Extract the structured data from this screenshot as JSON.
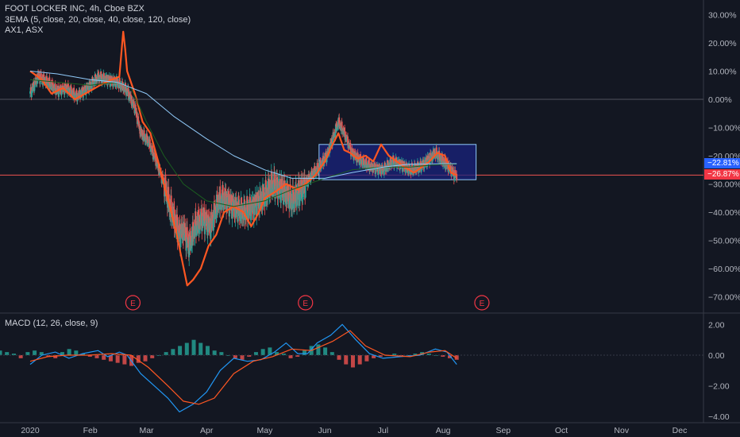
{
  "header": {
    "title": "FOOT LOCKER INC, 4h, Cboe BZX",
    "indicator1": "3EMA (5, close, 20, close, 40, close, 120, close)",
    "indicator2": "AX1, ASX"
  },
  "macd_panel": {
    "label": "MACD (12, 26, close, 9)"
  },
  "price_tags": [
    {
      "text": "−22.81%",
      "color": "#2962ff"
    },
    {
      "text": "−26.87%",
      "color": "#f23645"
    }
  ],
  "earnings_markers": [
    {
      "label": "E",
      "x_month": "Feb"
    },
    {
      "label": "E",
      "x_month": "May"
    },
    {
      "label": "E",
      "x_month": "Aug"
    }
  ],
  "colors": {
    "background": "#131722",
    "grid": "#2a2e39",
    "candle_up": "#26a69a",
    "candle_down": "#ef5350",
    "ema5": "#ff5722",
    "ema20": "#b71c1c",
    "ema40": "#1b5e20",
    "ema120": "#90caf9",
    "macd_line": "#2196f3",
    "signal_line": "#ff5722",
    "box_fill": "#1a237e",
    "box_border": "#90caf9"
  },
  "chart_data": [
    {
      "type": "line",
      "title": "FOOT LOCKER INC, 4h, Cboe BZX",
      "y_axis": {
        "unit": "%",
        "range": [
          -75,
          30
        ],
        "ticks": [
          "30.00%",
          "20.00%",
          "10.00%",
          "0.00%",
          "−10.00%",
          "−20.00%",
          "−30.00%",
          "−40.00%",
          "−50.00%",
          "−60.00%",
          "−70.00%"
        ],
        "tick_values": [
          30,
          20,
          10,
          0,
          -10,
          -20,
          -30,
          -40,
          -50,
          -60,
          -70
        ]
      },
      "x_axis": {
        "ticks": [
          "2020",
          "Feb",
          "Mar",
          "Apr",
          "May",
          "Jun",
          "Jul",
          "Aug",
          "Sep",
          "Oct",
          "Nov",
          "Dec"
        ],
        "tick_dates": [
          "2020-01-01",
          "2020-02-01",
          "2020-03-01",
          "2020-04-01",
          "2020-05-01",
          "2020-06-01",
          "2020-07-01",
          "2020-08-01",
          "2020-09-01",
          "2020-10-01",
          "2020-11-01",
          "2020-12-01"
        ]
      },
      "series": [
        {
          "key": "price",
          "points": [
            [
              "2020-01-01",
              2
            ],
            [
              "2020-01-05",
              8
            ],
            [
              "2020-01-10",
              6
            ],
            [
              "2020-01-15",
              3
            ],
            [
              "2020-01-20",
              4
            ],
            [
              "2020-01-25",
              1
            ],
            [
              "2020-02-01",
              5
            ],
            [
              "2020-02-05",
              8
            ],
            [
              "2020-02-10",
              7
            ],
            [
              "2020-02-15",
              6
            ],
            [
              "2020-02-20",
              3
            ],
            [
              "2020-02-24",
              -3
            ],
            [
              "2020-02-27",
              -12
            ],
            [
              "2020-03-02",
              -15
            ],
            [
              "2020-03-06",
              -22
            ],
            [
              "2020-03-10",
              -30
            ],
            [
              "2020-03-13",
              -38
            ],
            [
              "2020-03-16",
              -44
            ],
            [
              "2020-03-18",
              -48
            ],
            [
              "2020-03-20",
              -46
            ],
            [
              "2020-03-23",
              -52
            ],
            [
              "2020-03-26",
              -45
            ],
            [
              "2020-03-30",
              -42
            ],
            [
              "2020-04-03",
              -45
            ],
            [
              "2020-04-07",
              -36
            ],
            [
              "2020-04-10",
              -35
            ],
            [
              "2020-04-15",
              -38
            ],
            [
              "2020-04-20",
              -40
            ],
            [
              "2020-04-25",
              -38
            ],
            [
              "2020-05-01",
              -34
            ],
            [
              "2020-05-05",
              -30
            ],
            [
              "2020-05-10",
              -32
            ],
            [
              "2020-05-15",
              -36
            ],
            [
              "2020-05-20",
              -32
            ],
            [
              "2020-05-25",
              -27
            ],
            [
              "2020-05-29",
              -24
            ],
            [
              "2020-06-02",
              -20
            ],
            [
              "2020-06-05",
              -14
            ],
            [
              "2020-06-08",
              -8
            ],
            [
              "2020-06-11",
              -12
            ],
            [
              "2020-06-15",
              -19
            ],
            [
              "2020-06-20",
              -22
            ],
            [
              "2020-06-25",
              -24
            ],
            [
              "2020-07-01",
              -25
            ],
            [
              "2020-07-06",
              -22
            ],
            [
              "2020-07-10",
              -23
            ],
            [
              "2020-07-15",
              -25
            ],
            [
              "2020-07-20",
              -24
            ],
            [
              "2020-07-25",
              -21
            ],
            [
              "2020-07-28",
              -19
            ],
            [
              "2020-08-01",
              -22
            ],
            [
              "2020-08-04",
              -24
            ],
            [
              "2020-08-07",
              -27
            ],
            [
              "2020-08-08",
              -26.87
            ]
          ]
        },
        {
          "key": "ema5",
          "name": "EMA 5",
          "points": [
            [
              "2020-01-01",
              10
            ],
            [
              "2020-01-07",
              7
            ],
            [
              "2020-01-12",
              2
            ],
            [
              "2020-01-18",
              4
            ],
            [
              "2020-01-24",
              0
            ],
            [
              "2020-02-01",
              3
            ],
            [
              "2020-02-06",
              5
            ],
            [
              "2020-02-12",
              7
            ],
            [
              "2020-02-16",
              8
            ],
            [
              "2020-02-18",
              24
            ],
            [
              "2020-02-19",
              18
            ],
            [
              "2020-02-20",
              10
            ],
            [
              "2020-02-24",
              2
            ],
            [
              "2020-02-28",
              -8
            ],
            [
              "2020-03-03",
              -12
            ],
            [
              "2020-03-07",
              -22
            ],
            [
              "2020-03-10",
              -30
            ],
            [
              "2020-03-13",
              -38
            ],
            [
              "2020-03-16",
              -46
            ],
            [
              "2020-03-19",
              -56
            ],
            [
              "2020-03-22",
              -66
            ],
            [
              "2020-03-25",
              -64
            ],
            [
              "2020-03-29",
              -60
            ],
            [
              "2020-04-02",
              -52
            ],
            [
              "2020-04-06",
              -48
            ],
            [
              "2020-04-10",
              -40
            ],
            [
              "2020-04-15",
              -38
            ],
            [
              "2020-04-20",
              -40
            ],
            [
              "2020-04-24",
              -45
            ],
            [
              "2020-04-28",
              -40
            ],
            [
              "2020-05-01",
              -35
            ],
            [
              "2020-05-06",
              -33
            ],
            [
              "2020-05-12",
              -30
            ],
            [
              "2020-05-18",
              -32
            ],
            [
              "2020-05-22",
              -30
            ],
            [
              "2020-05-27",
              -27
            ],
            [
              "2020-06-01",
              -22
            ],
            [
              "2020-06-05",
              -16
            ],
            [
              "2020-06-08",
              -12
            ],
            [
              "2020-06-11",
              -18
            ],
            [
              "2020-06-14",
              -19
            ],
            [
              "2020-06-18",
              -21
            ],
            [
              "2020-06-22",
              -20
            ],
            [
              "2020-06-26",
              -22
            ],
            [
              "2020-06-30",
              -16
            ],
            [
              "2020-07-04",
              -20
            ],
            [
              "2020-07-08",
              -22
            ],
            [
              "2020-07-12",
              -24
            ],
            [
              "2020-07-17",
              -26
            ],
            [
              "2020-07-21",
              -24
            ],
            [
              "2020-07-25",
              -22
            ],
            [
              "2020-07-29",
              -19
            ],
            [
              "2020-08-02",
              -20
            ],
            [
              "2020-08-05",
              -26
            ],
            [
              "2020-08-08",
              -27
            ]
          ]
        },
        {
          "key": "ema40",
          "name": "EMA 40",
          "points": [
            [
              "2020-01-01",
              7
            ],
            [
              "2020-02-01",
              5
            ],
            [
              "2020-02-15",
              6
            ],
            [
              "2020-02-22",
              4
            ],
            [
              "2020-03-01",
              -8
            ],
            [
              "2020-03-10",
              -20
            ],
            [
              "2020-03-20",
              -30
            ],
            [
              "2020-04-01",
              -36
            ],
            [
              "2020-04-15",
              -38
            ],
            [
              "2020-05-01",
              -36
            ],
            [
              "2020-05-15",
              -32
            ],
            [
              "2020-06-01",
              -28
            ],
            [
              "2020-06-15",
              -25
            ],
            [
              "2020-07-01",
              -24
            ],
            [
              "2020-07-15",
              -24
            ],
            [
              "2020-08-01",
              -23
            ],
            [
              "2020-08-08",
              -23
            ]
          ]
        },
        {
          "key": "ema120",
          "name": "EMA 120",
          "points": [
            [
              "2020-01-01",
              10
            ],
            [
              "2020-01-15",
              9
            ],
            [
              "2020-02-01",
              7
            ],
            [
              "2020-02-15",
              6
            ],
            [
              "2020-03-01",
              2
            ],
            [
              "2020-03-15",
              -6
            ],
            [
              "2020-04-01",
              -14
            ],
            [
              "2020-04-15",
              -20
            ],
            [
              "2020-05-01",
              -25
            ],
            [
              "2020-05-15",
              -28
            ],
            [
              "2020-06-01",
              -28
            ],
            [
              "2020-06-15",
              -26
            ],
            [
              "2020-07-01",
              -24
            ],
            [
              "2020-07-15",
              -23
            ],
            [
              "2020-08-01",
              -22.81
            ],
            [
              "2020-08-08",
              -22.81
            ]
          ]
        }
      ],
      "box": {
        "x0": "2020-05-29",
        "x1": "2020-08-18",
        "y0": -16,
        "y1": -28.5
      },
      "horizontal_lines": [
        0,
        -26.87
      ],
      "last_values": {
        "ema120": -22.81,
        "price": -26.87
      }
    },
    {
      "type": "line",
      "title": "MACD (12, 26, close, 9)",
      "y_axis": {
        "ticks": [
          "2.00",
          "0.00",
          "−2.00",
          "−4.00"
        ],
        "tick_values": [
          2,
          0,
          -2,
          -4
        ],
        "range": [
          -4.1,
          2.1
        ]
      },
      "series": [
        {
          "key": "macd",
          "points": [
            [
              "2020-01-01",
              -0.6
            ],
            [
              "2020-01-07",
              0.0
            ],
            [
              "2020-01-14",
              0.2
            ],
            [
              "2020-01-21",
              -0.2
            ],
            [
              "2020-01-28",
              0.1
            ],
            [
              "2020-02-05",
              0.3
            ],
            [
              "2020-02-10",
              -0.1
            ],
            [
              "2020-02-16",
              0.2
            ],
            [
              "2020-02-20",
              0.0
            ],
            [
              "2020-02-27",
              -1.2
            ],
            [
              "2020-03-05",
              -2.0
            ],
            [
              "2020-03-12",
              -2.8
            ],
            [
              "2020-03-18",
              -3.7
            ],
            [
              "2020-03-25",
              -3.2
            ],
            [
              "2020-04-01",
              -2.4
            ],
            [
              "2020-04-08",
              -1.0
            ],
            [
              "2020-04-15",
              -0.2
            ],
            [
              "2020-04-22",
              -0.4
            ],
            [
              "2020-04-29",
              -0.3
            ],
            [
              "2020-05-06",
              0.2
            ],
            [
              "2020-05-12",
              0.8
            ],
            [
              "2020-05-18",
              0.1
            ],
            [
              "2020-05-23",
              0.1
            ],
            [
              "2020-05-28",
              0.8
            ],
            [
              "2020-06-04",
              1.3
            ],
            [
              "2020-06-10",
              2.0
            ],
            [
              "2020-06-17",
              1.0
            ],
            [
              "2020-06-24",
              0.1
            ],
            [
              "2020-07-01",
              -0.2
            ],
            [
              "2020-07-10",
              -0.1
            ],
            [
              "2020-07-20",
              0.0
            ],
            [
              "2020-07-28",
              0.4
            ],
            [
              "2020-08-03",
              0.2
            ],
            [
              "2020-08-08",
              -0.6
            ]
          ]
        },
        {
          "key": "signal",
          "points": [
            [
              "2020-01-01",
              -0.4
            ],
            [
              "2020-01-10",
              -0.1
            ],
            [
              "2020-01-20",
              0.0
            ],
            [
              "2020-01-31",
              0.0
            ],
            [
              "2020-02-12",
              0.1
            ],
            [
              "2020-02-22",
              0.0
            ],
            [
              "2020-03-02",
              -0.8
            ],
            [
              "2020-03-12",
              -2.0
            ],
            [
              "2020-03-20",
              -3.0
            ],
            [
              "2020-03-28",
              -3.2
            ],
            [
              "2020-04-05",
              -2.8
            ],
            [
              "2020-04-15",
              -1.2
            ],
            [
              "2020-04-25",
              -0.4
            ],
            [
              "2020-05-05",
              -0.1
            ],
            [
              "2020-05-15",
              0.4
            ],
            [
              "2020-05-25",
              0.3
            ],
            [
              "2020-06-05",
              0.9
            ],
            [
              "2020-06-14",
              1.6
            ],
            [
              "2020-06-22",
              0.6
            ],
            [
              "2020-07-02",
              0.0
            ],
            [
              "2020-07-15",
              -0.1
            ],
            [
              "2020-07-25",
              0.2
            ],
            [
              "2020-08-02",
              0.3
            ],
            [
              "2020-08-08",
              -0.2
            ]
          ]
        }
      ],
      "histogram": [
        0.3,
        0.2,
        0.1,
        -0.2,
        0.2,
        0.3,
        0.2,
        -0.1,
        -0.2,
        0.2,
        0.4,
        0.3,
        0.1,
        -0.1,
        -0.2,
        -0.3,
        -0.4,
        -0.5,
        -0.6,
        -0.7,
        -0.5,
        -0.4,
        -0.2,
        0.0,
        0.2,
        0.4,
        0.6,
        0.8,
        1.0,
        0.8,
        0.6,
        0.3,
        0.2,
        0.0,
        -0.2,
        -0.3,
        -0.1,
        0.2,
        0.4,
        0.5,
        0.2,
        0.1,
        -0.2,
        -0.1,
        0.3,
        0.6,
        0.7,
        0.5,
        0.2,
        -0.3,
        -0.6,
        -0.8,
        -0.6,
        -0.4,
        -0.2,
        -0.1,
        0.0,
        0.1,
        -0.1,
        0.0,
        0.1,
        0.2,
        0.1,
        0.0,
        -0.1,
        -0.2,
        -0.3
      ]
    }
  ]
}
